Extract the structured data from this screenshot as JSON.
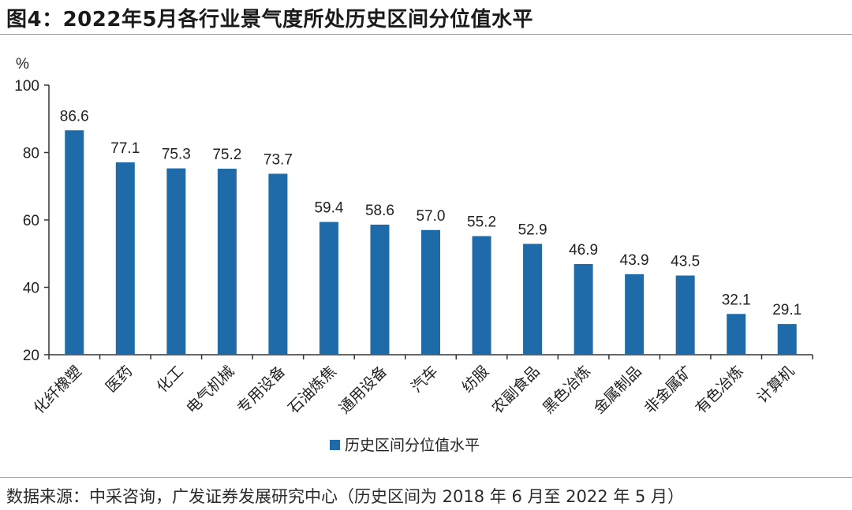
{
  "title": "图4：2022年5月各行业景气度所处历史区间分位值水平",
  "source": "数据来源：中采咨询，广发证券发展研究中心（历史区间为 2018 年 6 月至 2022 年 5 月）",
  "colors": {
    "bar": "#1f6aa8",
    "axis": "#333333"
  },
  "chart_data": {
    "type": "bar",
    "title": "",
    "xlabel": "",
    "ylabel": "%",
    "ylim": [
      20,
      100
    ],
    "yticks": [
      20,
      40,
      60,
      80,
      100
    ],
    "grid": false,
    "legend": "bottom-center",
    "categories": [
      "化纤橡塑",
      "医药",
      "化工",
      "电气机械",
      "专用设备",
      "石油炼焦",
      "通用设备",
      "汽车",
      "纺服",
      "农副食品",
      "黑色冶炼",
      "金属制品",
      "非金属矿",
      "有色冶炼",
      "计算机"
    ],
    "series": [
      {
        "name": "历史区间分位值水平",
        "values": [
          86.6,
          77.1,
          75.3,
          75.2,
          73.7,
          59.4,
          58.6,
          57.0,
          55.2,
          52.9,
          46.9,
          43.9,
          43.5,
          32.1,
          29.1
        ],
        "labels": [
          "86.6",
          "77.1",
          "75.3",
          "75.2",
          "73.7",
          "59.4",
          "58.6",
          "57.0",
          "55.2",
          "52.9",
          "46.9",
          "43.9",
          "43.5",
          "32.1",
          "29.1"
        ]
      }
    ]
  }
}
